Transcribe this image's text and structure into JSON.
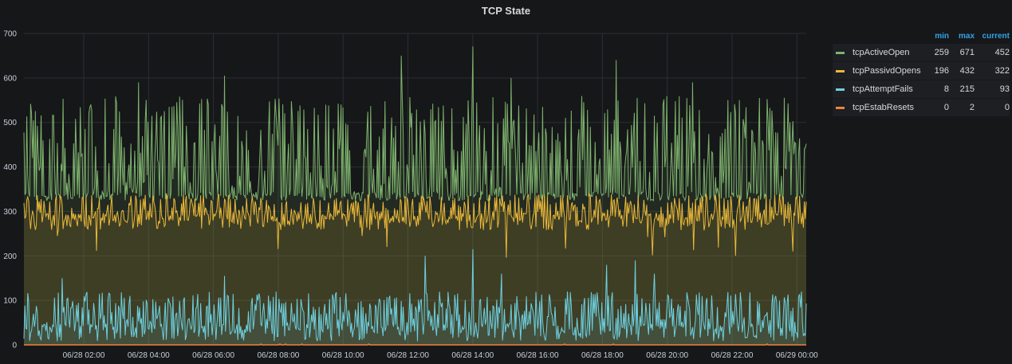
{
  "panel": {
    "title": "TCP State"
  },
  "legend": {
    "headers": {
      "min": "min",
      "max": "max",
      "current": "current"
    },
    "items": [
      {
        "name": "tcpActiveOpen",
        "color": "#7eb26d",
        "min": "259",
        "max": "671",
        "current": "452"
      },
      {
        "name": "tcpPassivdOpens",
        "color": "#eab839",
        "min": "196",
        "max": "432",
        "current": "322"
      },
      {
        "name": "tcpAttemptFails",
        "color": "#6ed0e0",
        "min": "8",
        "max": "215",
        "current": "93"
      },
      {
        "name": "tcpEstabResets",
        "color": "#ef843c",
        "min": "0",
        "max": "2",
        "current": "0"
      }
    ]
  },
  "chart_data": {
    "type": "line",
    "title": "TCP State",
    "xlabel": "",
    "ylabel": "",
    "ylim": [
      0,
      700
    ],
    "yticks": [
      "0",
      "100",
      "200",
      "300",
      "400",
      "500",
      "600",
      "700"
    ],
    "xticks": [
      "06/28 02:00",
      "06/28 04:00",
      "06/28 06:00",
      "06/28 08:00",
      "06/28 10:00",
      "06/28 12:00",
      "06/28 14:00",
      "06/28 16:00",
      "06/28 18:00",
      "06/28 20:00",
      "06/28 22:00",
      "06/29 00:00"
    ],
    "grid": true,
    "legend_position": "right",
    "series": [
      {
        "name": "tcpActiveOpen",
        "color": "#7eb26d",
        "min": 259,
        "max": 671,
        "current": 452,
        "baseline": 330,
        "fill": true
      },
      {
        "name": "tcpPassivdOpens",
        "color": "#eab839",
        "min": 196,
        "max": 432,
        "current": 322,
        "baseline": 258,
        "fill": true
      },
      {
        "name": "tcpAttemptFails",
        "color": "#6ed0e0",
        "min": 8,
        "max": 215,
        "current": 93,
        "baseline": 5,
        "fill": true
      },
      {
        "name": "tcpEstabResets",
        "color": "#ef843c",
        "min": 0,
        "max": 2,
        "current": 0,
        "baseline": 0,
        "fill": false
      }
    ]
  }
}
